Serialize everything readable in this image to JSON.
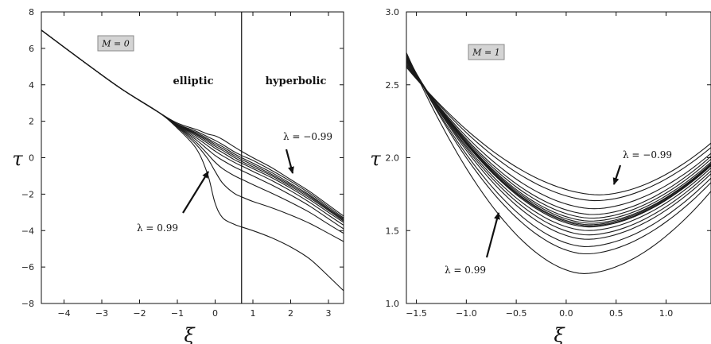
{
  "chart_data": [
    {
      "type": "line",
      "xlabel": "ξ",
      "ylabel": "τ",
      "xlim": [
        -4.6,
        3.4
      ],
      "ylim": [
        -8,
        8
      ],
      "x_ticks": [
        -4,
        -3,
        -2,
        -1,
        0,
        1,
        2,
        3
      ],
      "y_ticks": [
        -8,
        -6,
        -4,
        -2,
        0,
        2,
        4,
        6,
        8
      ],
      "grid": false,
      "badge": "M = 0",
      "vline_x": 0.7,
      "region_labels": [
        "elliptic",
        "hyperbolic"
      ],
      "annotations": [
        "λ = −0.99",
        "λ = 0.99"
      ],
      "x": [
        -4.6,
        -3.5,
        -2.5,
        -1.5,
        -1.0,
        -0.5,
        -0.2,
        0.0,
        0.2,
        0.5,
        0.7,
        1.0,
        1.5,
        2.0,
        2.5,
        3.0,
        3.4
      ],
      "series": [
        {
          "values": [
            7.0,
            5.3,
            3.8,
            2.5,
            1.9,
            1.55,
            1.3,
            1.2,
            1.0,
            0.6,
            0.35,
            0.0,
            -0.55,
            -1.2,
            -1.85,
            -2.6,
            -3.2
          ]
        },
        {
          "values": [
            7.0,
            5.3,
            3.8,
            2.5,
            1.85,
            1.45,
            1.15,
            0.95,
            0.72,
            0.33,
            0.12,
            -0.15,
            -0.7,
            -1.3,
            -1.95,
            -2.7,
            -3.3
          ]
        },
        {
          "values": [
            7.0,
            5.3,
            3.8,
            2.5,
            1.83,
            1.38,
            1.05,
            0.82,
            0.6,
            0.22,
            0.0,
            -0.3,
            -0.82,
            -1.42,
            -2.05,
            -2.78,
            -3.36
          ]
        },
        {
          "values": [
            7.0,
            5.3,
            3.8,
            2.5,
            1.82,
            1.32,
            0.98,
            0.73,
            0.5,
            0.12,
            -0.1,
            -0.4,
            -0.92,
            -1.5,
            -2.12,
            -2.84,
            -3.42
          ]
        },
        {
          "values": [
            7.0,
            5.3,
            3.8,
            2.5,
            1.81,
            1.27,
            0.9,
            0.63,
            0.4,
            0.02,
            -0.2,
            -0.5,
            -1.0,
            -1.58,
            -2.2,
            -2.9,
            -3.48
          ]
        },
        {
          "values": [
            7.0,
            5.3,
            3.8,
            2.5,
            1.8,
            1.2,
            0.8,
            0.52,
            0.28,
            -0.1,
            -0.3,
            -0.6,
            -1.1,
            -1.67,
            -2.3,
            -3.0,
            -3.55
          ]
        },
        {
          "values": [
            7.0,
            5.3,
            3.8,
            2.5,
            1.78,
            1.1,
            0.66,
            0.36,
            0.1,
            -0.25,
            -0.45,
            -0.75,
            -1.25,
            -1.82,
            -2.45,
            -3.15,
            -3.7
          ]
        },
        {
          "values": [
            7.0,
            5.3,
            3.8,
            2.5,
            1.75,
            0.98,
            0.46,
            0.12,
            -0.15,
            -0.5,
            -0.7,
            -1.0,
            -1.5,
            -2.05,
            -2.65,
            -3.35,
            -3.9
          ]
        },
        {
          "values": [
            7.0,
            5.3,
            3.8,
            2.5,
            1.72,
            0.85,
            0.2,
            -0.25,
            -0.6,
            -0.98,
            -1.18,
            -1.48,
            -1.95,
            -2.45,
            -3.0,
            -3.65,
            -4.15
          ]
        },
        {
          "values": [
            7.0,
            5.3,
            3.8,
            2.5,
            1.68,
            0.72,
            -0.05,
            -0.75,
            -1.4,
            -1.95,
            -2.15,
            -2.4,
            -2.75,
            -3.15,
            -3.6,
            -4.15,
            -4.6
          ]
        },
        {
          "values": [
            7.0,
            5.3,
            3.8,
            2.5,
            1.62,
            0.5,
            -0.9,
            -2.5,
            -3.3,
            -3.65,
            -3.8,
            -4.0,
            -4.4,
            -4.9,
            -5.55,
            -6.5,
            -7.3
          ]
        }
      ]
    },
    {
      "type": "line",
      "xlabel": "ξ",
      "ylabel": "τ",
      "xlim": [
        -1.6,
        1.45
      ],
      "ylim": [
        1.0,
        3.0
      ],
      "x_ticks": [
        -1.5,
        -1.0,
        -0.5,
        0.0,
        0.5,
        1.0
      ],
      "y_ticks": [
        1.0,
        1.5,
        2.0,
        2.5,
        3.0
      ],
      "x_tick_labels": [
        "−1.5",
        "−1.0",
        "−0.5",
        "0.0",
        "0.5",
        "1.0"
      ],
      "y_tick_labels": [
        "1.0",
        "1.5",
        "2.0",
        "2.5",
        "3.0"
      ],
      "grid": false,
      "badge": "M = 1",
      "annotations": [
        "λ = −0.99",
        "λ = 0.99"
      ],
      "curves": [
        {
          "xv": 0.33,
          "tmin": 1.745,
          "left": 2.62,
          "right": 2.1
        },
        {
          "xv": 0.3,
          "tmin": 1.705,
          "left": 2.63,
          "right": 2.07
        },
        {
          "xv": 0.28,
          "tmin": 1.65,
          "left": 2.64,
          "right": 2.03
        },
        {
          "xv": 0.27,
          "tmin": 1.61,
          "left": 2.65,
          "right": 2.01
        },
        {
          "xv": 0.26,
          "tmin": 1.585,
          "left": 2.66,
          "right": 1.99
        },
        {
          "xv": 0.25,
          "tmin": 1.565,
          "left": 2.665,
          "right": 1.97
        },
        {
          "xv": 0.25,
          "tmin": 1.55,
          "left": 2.67,
          "right": 1.96
        },
        {
          "xv": 0.24,
          "tmin": 1.54,
          "left": 2.675,
          "right": 1.955
        },
        {
          "xv": 0.24,
          "tmin": 1.532,
          "left": 2.68,
          "right": 1.95
        },
        {
          "xv": 0.23,
          "tmin": 1.525,
          "left": 2.685,
          "right": 1.945
        },
        {
          "xv": 0.22,
          "tmin": 1.5,
          "left": 2.69,
          "right": 1.93
        },
        {
          "xv": 0.22,
          "tmin": 1.47,
          "left": 2.695,
          "right": 1.91
        },
        {
          "xv": 0.21,
          "tmin": 1.44,
          "left": 2.7,
          "right": 1.89
        },
        {
          "xv": 0.2,
          "tmin": 1.39,
          "left": 2.705,
          "right": 1.86
        },
        {
          "xv": 0.2,
          "tmin": 1.34,
          "left": 2.71,
          "right": 1.83
        },
        {
          "xv": 0.18,
          "tmin": 1.205,
          "left": 2.72,
          "right": 1.77
        }
      ]
    }
  ]
}
